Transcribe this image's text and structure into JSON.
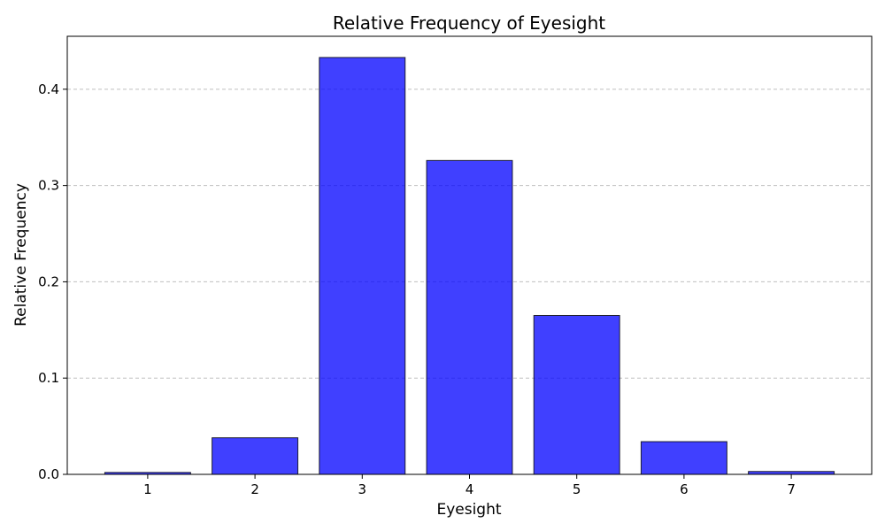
{
  "chart_data": {
    "type": "bar",
    "title": "Relative Frequency of Eyesight",
    "xlabel": "Eyesight",
    "ylabel": "Relative Frequency",
    "categories": [
      "1",
      "2",
      "3",
      "4",
      "5",
      "6",
      "7"
    ],
    "values": [
      0.002,
      0.038,
      0.433,
      0.326,
      0.165,
      0.034,
      0.003
    ],
    "ylim": [
      0,
      0.455
    ],
    "yticks": [
      0.0,
      0.1,
      0.2,
      0.3,
      0.4
    ],
    "ytick_labels": [
      "0.0",
      "0.1",
      "0.2",
      "0.3",
      "0.4"
    ],
    "grid": "y-dashed",
    "bar_color": "#0000ff",
    "edge_color": "#000000"
  }
}
